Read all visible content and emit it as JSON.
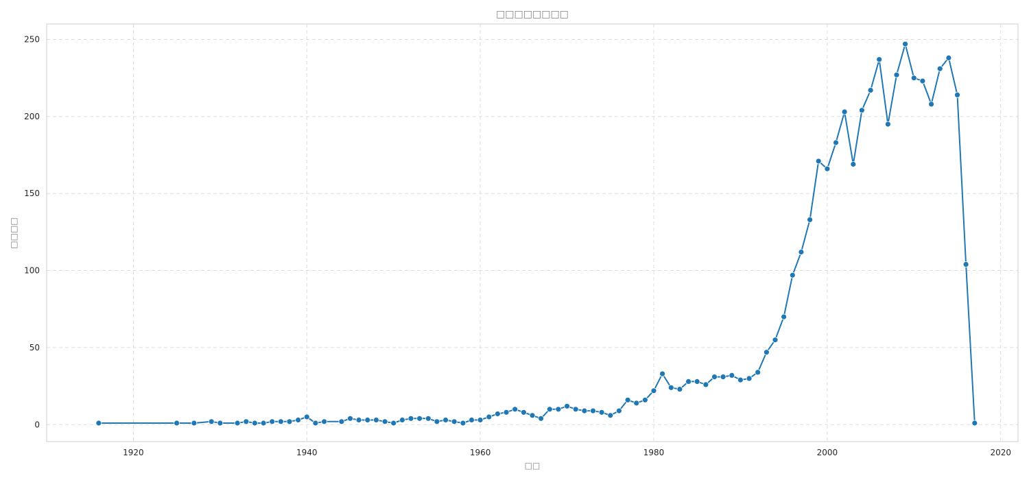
{
  "chart_data": {
    "type": "line",
    "title": "□□□□□□□□",
    "xlabel": "□□",
    "ylabel": "□□□□",
    "xlim": [
      1910,
      2022
    ],
    "ylim": [
      -11,
      260
    ],
    "xticks": [
      1920,
      1940,
      1960,
      1980,
      2000,
      2020
    ],
    "yticks": [
      0,
      50,
      100,
      150,
      200,
      250
    ],
    "grid": true,
    "marker": "circle",
    "color": "#1f77b4",
    "series": [
      {
        "x": [
          1916,
          1925,
          1927,
          1929,
          1930,
          1932,
          1933,
          1934,
          1935,
          1936,
          1937,
          1938,
          1939,
          1940,
          1941,
          1942,
          1944,
          1945,
          1946,
          1947,
          1948,
          1949,
          1950,
          1951,
          1952,
          1953,
          1954,
          1955,
          1956,
          1957,
          1958,
          1959,
          1960,
          1961,
          1962,
          1963,
          1964,
          1965,
          1966,
          1967,
          1968,
          1969,
          1970,
          1971,
          1972,
          1973,
          1974,
          1975,
          1976,
          1977,
          1978,
          1979,
          1980,
          1981,
          1982,
          1983,
          1984,
          1985,
          1986,
          1987,
          1988,
          1989,
          1990,
          1991,
          1992,
          1993,
          1994,
          1995,
          1996,
          1997,
          1998,
          1999,
          2000,
          2001,
          2002,
          2003,
          2004,
          2005,
          2006,
          2007,
          2008,
          2009,
          2010,
          2011,
          2012,
          2013,
          2014,
          2015,
          2016,
          2017
        ],
        "y": [
          1,
          1,
          1,
          2,
          1,
          1,
          2,
          1,
          1,
          2,
          2,
          2,
          3,
          5,
          1,
          2,
          2,
          4,
          3,
          3,
          3,
          2,
          1,
          3,
          4,
          4,
          4,
          2,
          3,
          2,
          1,
          3,
          3,
          5,
          7,
          8,
          10,
          8,
          6,
          4,
          10,
          10,
          12,
          10,
          9,
          9,
          8,
          6,
          9,
          16,
          14,
          16,
          22,
          33,
          24,
          23,
          28,
          28,
          26,
          31,
          31,
          32,
          29,
          30,
          34,
          47,
          55,
          70,
          97,
          112,
          133,
          171,
          166,
          183,
          203,
          169,
          204,
          217,
          237,
          195,
          227,
          247,
          225,
          223,
          208,
          231,
          238,
          214,
          104,
          1
        ]
      }
    ]
  }
}
